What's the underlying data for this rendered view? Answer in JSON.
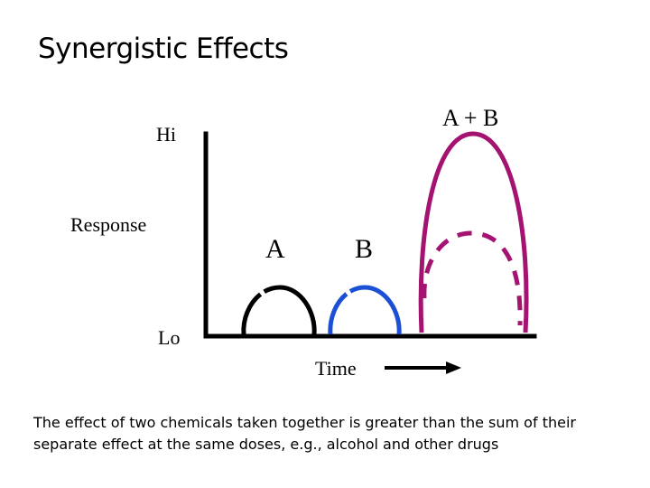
{
  "title": "Synergistic Effects",
  "labels": {
    "hi": "Hi",
    "response": "Response",
    "lo": "Lo",
    "a": "A",
    "b": "B",
    "a_plus_b": "A + B",
    "time": "Time"
  },
  "caption": "The effect of two chemicals taken together is greater than the sum of their separate effect at the same doses, e.g., alcohol and other drugs",
  "colors": {
    "axis": "#000000",
    "curve_a": "#000000",
    "curve_b": "#1a4fd6",
    "curve_ab": "#a3136f"
  }
}
